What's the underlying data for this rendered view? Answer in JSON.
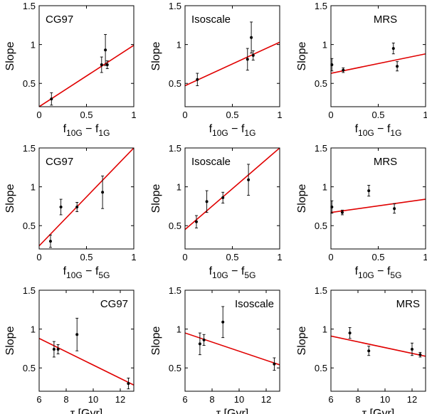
{
  "figure": {
    "type": "scatter-grid",
    "ylabel": "Slope"
  },
  "chart_data": [
    {
      "type": "scatter",
      "label": "CG97",
      "xlabel": "f10G − f1G",
      "xlabel_main": "f",
      "xlabel_sub1": "10G",
      "xlabel_mid": " − f",
      "xlabel_sub2": "1G",
      "ylabel": "Slope",
      "xlim": [
        0,
        1
      ],
      "ylim": [
        0.2,
        1.5
      ],
      "xticks": [
        0,
        0.5,
        1
      ],
      "xticklabels": [
        "0",
        "0.5",
        "1"
      ],
      "yticks": [
        0.5,
        1,
        1.5
      ],
      "yticklabels": [
        "0.5",
        "1",
        "1.5"
      ],
      "points": [
        {
          "x": 0.13,
          "y": 0.3,
          "err": 0.08
        },
        {
          "x": 0.66,
          "y": 0.74,
          "err": 0.1
        },
        {
          "x": 0.7,
          "y": 0.93,
          "err": 0.2
        },
        {
          "x": 0.72,
          "y": 0.74,
          "err": 0.05
        }
      ],
      "fit": {
        "x": [
          0,
          1
        ],
        "y": [
          0.2,
          0.99
        ]
      }
    },
    {
      "type": "scatter",
      "label": "Isoscale",
      "xlabel": "f10G − f1G",
      "xlabel_main": "f",
      "xlabel_sub1": "10G",
      "xlabel_mid": " − f",
      "xlabel_sub2": "1G",
      "ylabel": "Slope",
      "xlim": [
        0,
        1
      ],
      "ylim": [
        0.2,
        1.5
      ],
      "xticks": [
        0,
        0.5,
        1
      ],
      "xticklabels": [
        "0",
        "0.5",
        "1"
      ],
      "yticks": [
        0.5,
        1,
        1.5
      ],
      "yticklabels": [
        "0.5",
        "1",
        "1.5"
      ],
      "points": [
        {
          "x": 0.13,
          "y": 0.55,
          "err": 0.08
        },
        {
          "x": 0.66,
          "y": 0.81,
          "err": 0.14
        },
        {
          "x": 0.7,
          "y": 1.09,
          "err": 0.2
        },
        {
          "x": 0.72,
          "y": 0.86,
          "err": 0.06
        }
      ],
      "fit": {
        "x": [
          0,
          1
        ],
        "y": [
          0.47,
          1.03
        ]
      }
    },
    {
      "type": "scatter",
      "label": "MRS",
      "xlabel": "f10G − f1G",
      "xlabel_main": "f",
      "xlabel_sub1": "10G",
      "xlabel_mid": " − f",
      "xlabel_sub2": "1G",
      "ylabel": "Slope",
      "xlim": [
        0,
        1
      ],
      "ylim": [
        0.2,
        1.5
      ],
      "xticks": [
        0,
        0.5,
        1
      ],
      "xticklabels": [
        "0",
        "0.5",
        "1"
      ],
      "yticks": [
        0.5,
        1,
        1.5
      ],
      "yticklabels": [
        "0.5",
        "1",
        "1.5"
      ],
      "points": [
        {
          "x": 0.01,
          "y": 0.74,
          "err": 0.08
        },
        {
          "x": 0.13,
          "y": 0.67,
          "err": 0.03
        },
        {
          "x": 0.66,
          "y": 0.95,
          "err": 0.07
        },
        {
          "x": 0.7,
          "y": 0.72,
          "err": 0.06
        }
      ],
      "fit": {
        "x": [
          0,
          1
        ],
        "y": [
          0.63,
          0.88
        ]
      }
    },
    {
      "type": "scatter",
      "label": "CG97",
      "xlabel": "f10G − f5G",
      "xlabel_main": "f",
      "xlabel_sub1": "10G",
      "xlabel_mid": " − f",
      "xlabel_sub2": "5G",
      "ylabel": "Slope",
      "xlim": [
        0,
        1
      ],
      "ylim": [
        0.2,
        1.5
      ],
      "xticks": [
        0,
        0.5,
        1
      ],
      "xticklabels": [
        "0",
        "0.5",
        "1"
      ],
      "yticks": [
        0.5,
        1,
        1.5
      ],
      "yticklabels": [
        "0.5",
        "1",
        "1.5"
      ],
      "points": [
        {
          "x": 0.12,
          "y": 0.3,
          "err": 0.08
        },
        {
          "x": 0.23,
          "y": 0.74,
          "err": 0.1
        },
        {
          "x": 0.4,
          "y": 0.74,
          "err": 0.06
        },
        {
          "x": 0.67,
          "y": 0.93,
          "err": 0.21
        }
      ],
      "fit": {
        "x": [
          0,
          1
        ],
        "y": [
          0.24,
          1.5
        ]
      }
    },
    {
      "type": "scatter",
      "label": "Isoscale",
      "xlabel": "f10G − f5G",
      "xlabel_main": "f",
      "xlabel_sub1": "10G",
      "xlabel_mid": " − f",
      "xlabel_sub2": "5G",
      "ylabel": "Slope",
      "xlim": [
        0,
        1
      ],
      "ylim": [
        0.2,
        1.5
      ],
      "xticks": [
        0,
        0.5,
        1
      ],
      "xticklabels": [
        "0",
        "0.5",
        "1"
      ],
      "yticks": [
        0.5,
        1,
        1.5
      ],
      "yticklabels": [
        "0.5",
        "1",
        "1.5"
      ],
      "points": [
        {
          "x": 0.12,
          "y": 0.55,
          "err": 0.08
        },
        {
          "x": 0.23,
          "y": 0.81,
          "err": 0.14
        },
        {
          "x": 0.4,
          "y": 0.86,
          "err": 0.07
        },
        {
          "x": 0.67,
          "y": 1.09,
          "err": 0.2
        }
      ],
      "fit": {
        "x": [
          0,
          1
        ],
        "y": [
          0.45,
          1.5
        ]
      }
    },
    {
      "type": "scatter",
      "label": "MRS",
      "xlabel": "f10G − f5G",
      "xlabel_main": "f",
      "xlabel_sub1": "10G",
      "xlabel_mid": " − f",
      "xlabel_sub2": "5G",
      "ylabel": "Slope",
      "xlim": [
        0,
        1
      ],
      "ylim": [
        0.2,
        1.5
      ],
      "xticks": [
        0,
        0.5,
        1
      ],
      "xticklabels": [
        "0",
        "0.5",
        "1"
      ],
      "yticks": [
        0.5,
        1,
        1.5
      ],
      "yticklabels": [
        "0.5",
        "1",
        "1.5"
      ],
      "points": [
        {
          "x": 0.01,
          "y": 0.74,
          "err": 0.08
        },
        {
          "x": 0.12,
          "y": 0.67,
          "err": 0.03
        },
        {
          "x": 0.4,
          "y": 0.95,
          "err": 0.07
        },
        {
          "x": 0.67,
          "y": 0.72,
          "err": 0.06
        }
      ],
      "fit": {
        "x": [
          0,
          1
        ],
        "y": [
          0.67,
          0.84
        ]
      }
    },
    {
      "type": "scatter",
      "label": "CG97",
      "xlabel": "τ [Gyr]",
      "xlabel_main": "τ [Gyr]",
      "ylabel": "Slope",
      "xlim": [
        6,
        13
      ],
      "ylim": [
        0.2,
        1.5
      ],
      "xticks": [
        6,
        8,
        10,
        12
      ],
      "xticklabels": [
        "6",
        "8",
        "10",
        "12"
      ],
      "yticks": [
        0.5,
        1,
        1.5
      ],
      "yticklabels": [
        "0.5",
        "1",
        "1.5"
      ],
      "points": [
        {
          "x": 7.1,
          "y": 0.74,
          "err": 0.1
        },
        {
          "x": 7.4,
          "y": 0.74,
          "err": 0.06
        },
        {
          "x": 8.8,
          "y": 0.93,
          "err": 0.21
        },
        {
          "x": 12.6,
          "y": 0.3,
          "err": 0.07
        }
      ],
      "fit": {
        "x": [
          6,
          13
        ],
        "y": [
          0.88,
          0.28
        ]
      }
    },
    {
      "type": "scatter",
      "label": "Isoscale",
      "xlabel": "τ [Gyr]",
      "xlabel_main": "τ [Gyr]",
      "ylabel": "Slope",
      "xlim": [
        6,
        13
      ],
      "ylim": [
        0.2,
        1.5
      ],
      "xticks": [
        6,
        8,
        10,
        12
      ],
      "xticklabels": [
        "6",
        "8",
        "10",
        "12"
      ],
      "yticks": [
        0.5,
        1,
        1.5
      ],
      "yticklabels": [
        "0.5",
        "1",
        "1.5"
      ],
      "points": [
        {
          "x": 7.1,
          "y": 0.81,
          "err": 0.14
        },
        {
          "x": 7.4,
          "y": 0.86,
          "err": 0.07
        },
        {
          "x": 8.8,
          "y": 1.09,
          "err": 0.2
        },
        {
          "x": 12.6,
          "y": 0.55,
          "err": 0.08
        }
      ],
      "fit": {
        "x": [
          6,
          13
        ],
        "y": [
          0.95,
          0.54
        ]
      }
    },
    {
      "type": "scatter",
      "label": "MRS",
      "xlabel": "τ [Gyr]",
      "xlabel_main": "τ [Gyr]",
      "ylabel": "Slope",
      "xlim": [
        6,
        13
      ],
      "ylim": [
        0.2,
        1.5
      ],
      "xticks": [
        6,
        8,
        10,
        12
      ],
      "xticklabels": [
        "6",
        "8",
        "10",
        "12"
      ],
      "yticks": [
        0.5,
        1,
        1.5
      ],
      "yticklabels": [
        "0.5",
        "1",
        "1.5"
      ],
      "points": [
        {
          "x": 7.4,
          "y": 0.95,
          "err": 0.07
        },
        {
          "x": 8.8,
          "y": 0.72,
          "err": 0.06
        },
        {
          "x": 12.0,
          "y": 0.74,
          "err": 0.08
        },
        {
          "x": 12.6,
          "y": 0.67,
          "err": 0.03
        }
      ],
      "fit": {
        "x": [
          6,
          13
        ],
        "y": [
          0.91,
          0.65
        ]
      }
    }
  ]
}
